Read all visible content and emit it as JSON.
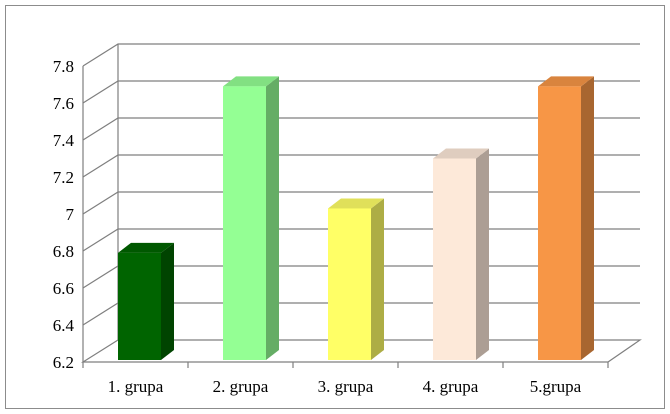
{
  "chart_data": {
    "type": "bar",
    "three_d": true,
    "title": "",
    "xlabel": "",
    "ylabel": "",
    "categories": [
      "1. grupa",
      "2. grupa",
      "3. grupa",
      "4. grupa",
      "5.grupa"
    ],
    "values": [
      6.79,
      7.69,
      7.03,
      7.3,
      7.69
    ],
    "colors": [
      "#006400",
      "#94ff94",
      "#ffff66",
      "#fde9d9",
      "#f79646"
    ],
    "ylim": [
      6.2,
      7.8
    ],
    "yticks": [
      "6.2",
      "6.4",
      "6.6",
      "6.8",
      "7",
      "7.2",
      "7.4",
      "7.6",
      "7.8"
    ],
    "grid": true,
    "legend": "none"
  }
}
